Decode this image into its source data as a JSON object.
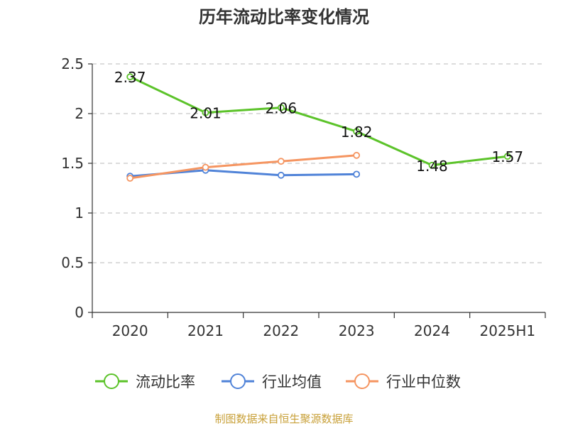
{
  "chart_data": {
    "type": "line",
    "title": "历年流动比率变化情况",
    "categories": [
      "2020",
      "2021",
      "2022",
      "2023",
      "2024",
      "2025H1"
    ],
    "ylim": [
      0,
      2.5
    ],
    "yticks": [
      "0",
      "0.5",
      "1",
      "1.5",
      "2",
      "2.5"
    ],
    "grid": true,
    "legend_position": "bottom",
    "series": [
      {
        "name": "流动比率",
        "color": "#5cc32a",
        "values": [
          2.37,
          2.01,
          2.06,
          1.82,
          1.48,
          1.57
        ],
        "labels": [
          "2.37",
          "2.01",
          "2.06",
          "1.82",
          "1.48",
          "1.57"
        ]
      },
      {
        "name": "行业均值",
        "color": "#5083d8",
        "values": [
          1.37,
          1.43,
          1.38,
          1.39,
          null,
          null
        ]
      },
      {
        "name": "行业中位数",
        "color": "#f59561",
        "values": [
          1.35,
          1.46,
          1.52,
          1.58,
          null,
          null
        ]
      }
    ]
  },
  "source": "制图数据来自恒生聚源数据库"
}
